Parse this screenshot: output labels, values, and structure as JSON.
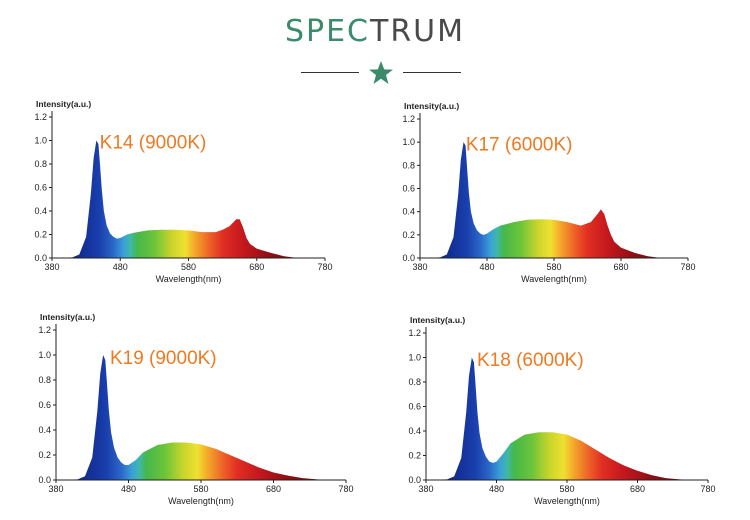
{
  "header": {
    "title_part1": "SPEC",
    "title_part2": "TRUM",
    "accent_color": "#3b8a6c",
    "dark_color": "#4a4a4a",
    "star_icon": "star-icon"
  },
  "chart_data": [
    {
      "type": "area",
      "label": "K14 (9000K)",
      "ylabel": "Intensity(a.u.)",
      "xlabel": "Wavelength(nm)",
      "xlim": [
        380,
        780
      ],
      "ylim": [
        0,
        1.2
      ],
      "x_ticks": [
        380,
        480,
        580,
        680,
        780
      ],
      "y_ticks": [
        "0.0",
        "0.2",
        "0.4",
        "0.6",
        "0.8",
        "1.0",
        "1.2"
      ],
      "x": [
        380,
        410,
        420,
        430,
        437,
        441,
        445,
        448,
        450,
        453,
        456,
        460,
        465,
        470,
        475,
        480,
        490,
        500,
        520,
        540,
        560,
        580,
        600,
        620,
        630,
        640,
        650,
        655,
        660,
        665,
        670,
        680,
        700,
        720,
        740
      ],
      "y": [
        0,
        0.005,
        0.03,
        0.18,
        0.55,
        0.85,
        1.0,
        0.97,
        0.82,
        0.58,
        0.4,
        0.28,
        0.21,
        0.18,
        0.165,
        0.17,
        0.2,
        0.215,
        0.235,
        0.24,
        0.24,
        0.235,
        0.22,
        0.22,
        0.24,
        0.27,
        0.33,
        0.33,
        0.26,
        0.17,
        0.12,
        0.08,
        0.045,
        0.015,
        0
      ]
    },
    {
      "type": "area",
      "label": "K17 (6000K)",
      "ylabel": "Intensity(a.u.)",
      "xlabel": "Wavelength(nm)",
      "xlim": [
        380,
        780
      ],
      "ylim": [
        0,
        1.2
      ],
      "x_ticks": [
        380,
        480,
        580,
        680,
        780
      ],
      "y_ticks": [
        "0.0",
        "0.2",
        "0.4",
        "0.6",
        "0.8",
        "1.0",
        "1.2"
      ],
      "x": [
        380,
        410,
        420,
        430,
        437,
        441,
        445,
        448,
        450,
        453,
        456,
        460,
        465,
        470,
        475,
        480,
        490,
        500,
        520,
        540,
        560,
        580,
        600,
        620,
        635,
        645,
        650,
        655,
        660,
        665,
        670,
        680,
        700,
        720,
        740
      ],
      "y": [
        0,
        0.005,
        0.03,
        0.18,
        0.55,
        0.85,
        1.0,
        0.97,
        0.8,
        0.56,
        0.4,
        0.3,
        0.24,
        0.21,
        0.2,
        0.21,
        0.25,
        0.28,
        0.31,
        0.33,
        0.335,
        0.33,
        0.31,
        0.28,
        0.31,
        0.38,
        0.42,
        0.38,
        0.28,
        0.2,
        0.14,
        0.09,
        0.045,
        0.015,
        0
      ]
    },
    {
      "type": "area",
      "label": "K19 (9000K)",
      "ylabel": "Intensity(a.u.)",
      "xlabel": "Wavelength(nm)",
      "xlim": [
        380,
        780
      ],
      "ylim": [
        0,
        1.2
      ],
      "x_ticks": [
        380,
        480,
        580,
        680,
        780
      ],
      "y_ticks": [
        "0.0",
        "0.2",
        "0.4",
        "0.6",
        "0.8",
        "1.0",
        "1.2"
      ],
      "x": [
        380,
        410,
        420,
        430,
        437,
        441,
        445,
        448,
        450,
        453,
        456,
        460,
        465,
        470,
        475,
        480,
        490,
        500,
        520,
        540,
        560,
        580,
        600,
        620,
        640,
        660,
        680,
        700,
        720,
        740,
        760
      ],
      "y": [
        0,
        0.005,
        0.03,
        0.18,
        0.55,
        0.85,
        1.0,
        0.96,
        0.8,
        0.55,
        0.38,
        0.26,
        0.18,
        0.14,
        0.12,
        0.12,
        0.16,
        0.22,
        0.28,
        0.3,
        0.3,
        0.285,
        0.25,
        0.2,
        0.15,
        0.1,
        0.06,
        0.035,
        0.015,
        0.005,
        0
      ]
    },
    {
      "type": "area",
      "label": "K18 (6000K)",
      "ylabel": "Intensity(a.u.)",
      "xlabel": "Wavelength(nm)",
      "xlim": [
        380,
        780
      ],
      "ylim": [
        0,
        1.2
      ],
      "x_ticks": [
        380,
        480,
        580,
        680,
        780
      ],
      "y_ticks": [
        "0.0",
        "0.2",
        "0.4",
        "0.6",
        "0.8",
        "1.0",
        "1.2"
      ],
      "x": [
        380,
        410,
        420,
        430,
        437,
        441,
        445,
        448,
        450,
        453,
        456,
        460,
        465,
        470,
        475,
        480,
        490,
        500,
        520,
        540,
        560,
        580,
        600,
        620,
        640,
        660,
        680,
        700,
        720,
        740,
        760
      ],
      "y": [
        0,
        0.005,
        0.03,
        0.18,
        0.55,
        0.85,
        1.0,
        0.96,
        0.8,
        0.55,
        0.38,
        0.26,
        0.19,
        0.15,
        0.14,
        0.15,
        0.22,
        0.3,
        0.37,
        0.39,
        0.39,
        0.37,
        0.32,
        0.25,
        0.18,
        0.12,
        0.075,
        0.04,
        0.015,
        0.005,
        0
      ]
    }
  ]
}
